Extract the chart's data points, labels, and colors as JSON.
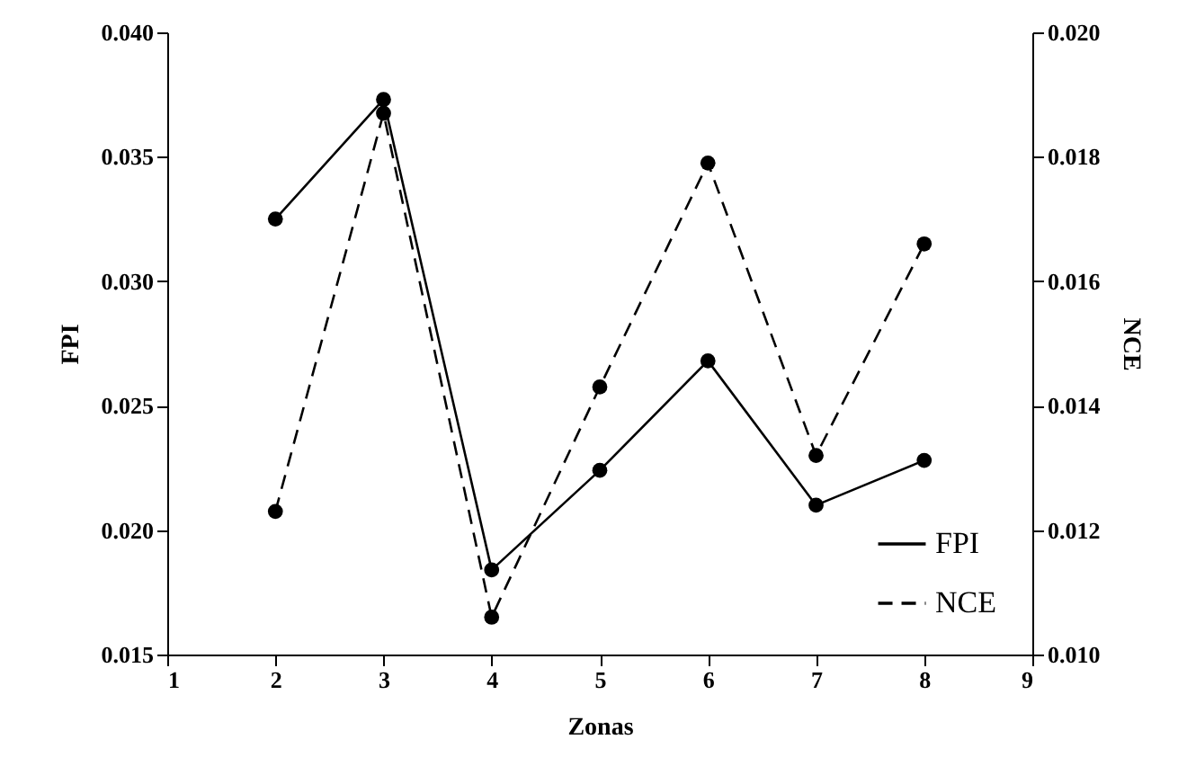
{
  "chart_data": {
    "type": "line",
    "xlabel": "Zonas",
    "ylabel": "FPI",
    "y2label": "NCE",
    "x": [
      2,
      3,
      4,
      5,
      6,
      7,
      8
    ],
    "series": [
      {
        "name": "FPI",
        "color": "#000000",
        "line_style": "solid",
        "values": [
          0.0325,
          0.0373,
          0.0184,
          0.0224,
          0.0268,
          0.021,
          0.0228
        ]
      },
      {
        "name": "NCE",
        "color": "#000000",
        "line_style": "dashed",
        "axis": "y2",
        "values": [
          0.0123,
          0.0187,
          0.0106,
          0.0143,
          0.0179,
          0.0132,
          0.0166
        ]
      }
    ],
    "xlim": [
      1,
      9
    ],
    "xticks": [
      1,
      2,
      3,
      4,
      5,
      6,
      7,
      8,
      9
    ],
    "ylim": [
      0.015,
      0.04
    ],
    "yticks": [
      {
        "value": 0.015,
        "label": "0.015"
      },
      {
        "value": 0.02,
        "label": "0.020"
      },
      {
        "value": 0.025,
        "label": "0.025"
      },
      {
        "value": 0.03,
        "label": "0.030"
      },
      {
        "value": 0.035,
        "label": "0.035"
      },
      {
        "value": 0.04,
        "label": "0.040"
      }
    ],
    "y2lim": [
      0.01,
      0.02
    ],
    "y2ticks": [
      {
        "value": 0.01,
        "label": "0.010"
      },
      {
        "value": 0.012,
        "label": "0.012"
      },
      {
        "value": 0.014,
        "label": "0.014"
      },
      {
        "value": 0.016,
        "label": "0.016"
      },
      {
        "value": 0.018,
        "label": "0.018"
      },
      {
        "value": 0.02,
        "label": "0.020"
      }
    ],
    "marker": "circle",
    "legend": "bottom right"
  }
}
